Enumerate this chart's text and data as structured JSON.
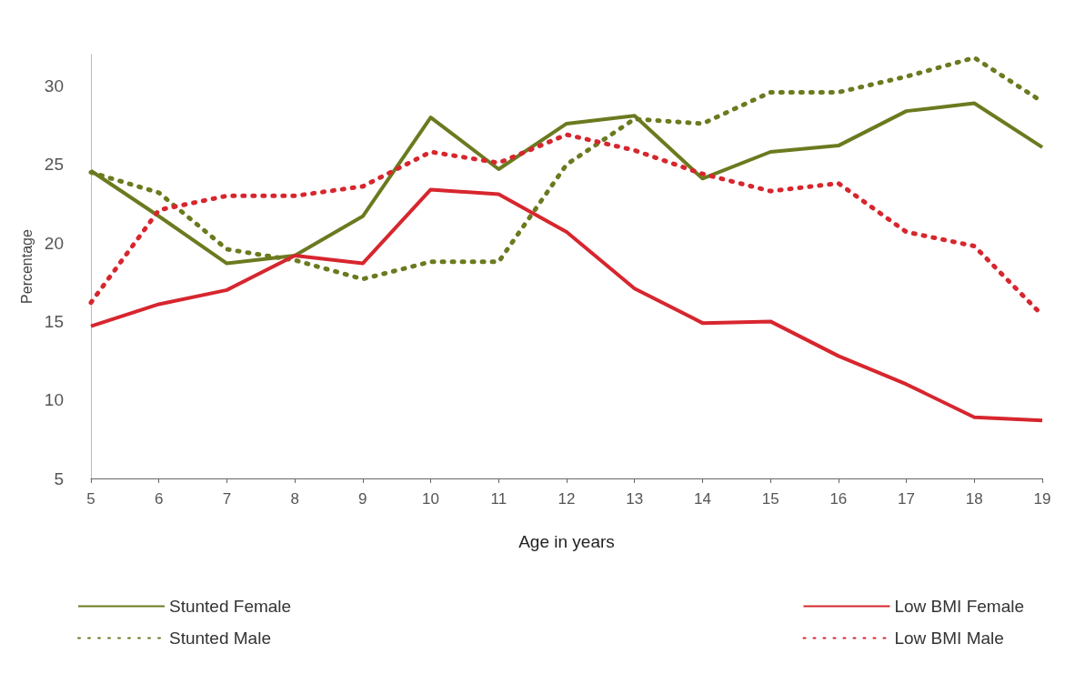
{
  "chart_data": {
    "type": "line",
    "xlabel": "Age in years",
    "ylabel": "Percentage",
    "categories": [
      "5",
      "6",
      "7",
      "8",
      "9",
      "10",
      "11",
      "12",
      "13",
      "14",
      "15",
      "16",
      "17",
      "18",
      "19"
    ],
    "series": [
      {
        "name": "Stunted Female",
        "color": "#6b7a1f",
        "line_style": "solid",
        "values": [
          24.6,
          21.7,
          18.7,
          19.2,
          21.7,
          28.0,
          24.7,
          27.6,
          28.1,
          24.1,
          25.8,
          26.2,
          28.4,
          28.9,
          26.1
        ]
      },
      {
        "name": "Stunted Male",
        "color": "#6b7a1f",
        "line_style": "dotted",
        "values": [
          24.5,
          23.2,
          19.6,
          18.9,
          17.7,
          18.8,
          18.8,
          25.0,
          27.9,
          27.6,
          29.6,
          29.6,
          30.6,
          31.8,
          29.0
        ]
      },
      {
        "name": "Low BMI Female",
        "color": "#d7262e",
        "line_style": "solid",
        "values": [
          14.7,
          16.1,
          17.0,
          19.2,
          18.7,
          23.4,
          23.1,
          20.7,
          17.1,
          14.9,
          15.0,
          12.8,
          11.0,
          8.9,
          8.7
        ]
      },
      {
        "name": "Low BMI Male",
        "color": "#d7262e",
        "line_style": "dotted",
        "values": [
          16.2,
          22.1,
          23.0,
          23.0,
          23.6,
          25.8,
          25.1,
          26.9,
          25.9,
          24.4,
          23.3,
          23.8,
          20.7,
          19.8,
          15.4
        ]
      }
    ],
    "ylim": [
      5,
      32
    ],
    "yticks": [
      5,
      10,
      15,
      20,
      25,
      30
    ],
    "grid": false,
    "legend": "bottom",
    "marker": "none"
  }
}
